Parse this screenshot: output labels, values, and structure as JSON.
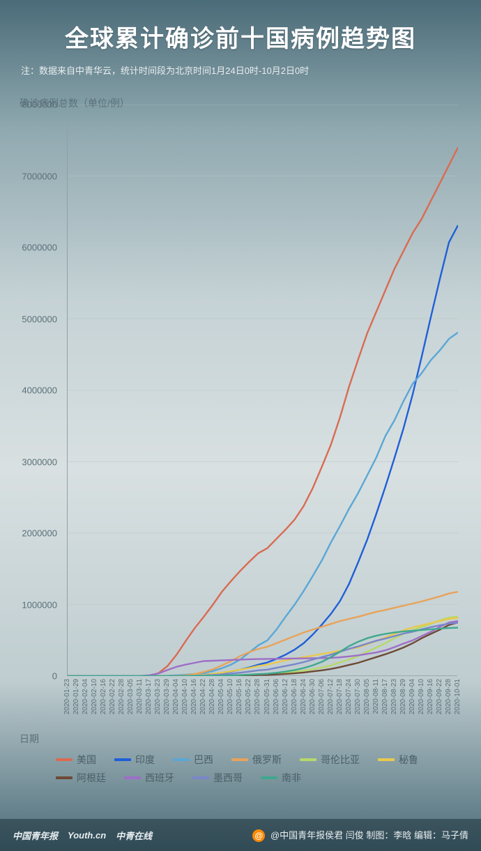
{
  "header": {
    "title": "全球累计确诊前十国病例趋势图",
    "subtitle": "注：数据来自中青华云，统计时间段为北京时间1月24日0时-10月2日0时"
  },
  "chart": {
    "ylabel": "确诊病例总数（单位/例）",
    "xlabel": "日期",
    "ylim": [
      0,
      8000000
    ],
    "ytick_step": 1000000,
    "yticks": [
      "0",
      "1000000",
      "2000000",
      "3000000",
      "4000000",
      "5000000",
      "6000000",
      "7000000",
      "8000000"
    ],
    "x_dates": [
      "2020-01-23",
      "2020-01-29",
      "2020-02-04",
      "2020-02-10",
      "2020-02-16",
      "2020-02-22",
      "2020-02-28",
      "2020-03-05",
      "2020-03-11",
      "2020-03-17",
      "2020-03-23",
      "2020-03-29",
      "2020-04-04",
      "2020-04-10",
      "2020-04-16",
      "2020-04-22",
      "2020-04-28",
      "2020-05-04",
      "2020-05-10",
      "2020-05-16",
      "2020-05-22",
      "2020-05-28",
      "2020-05-31",
      "2020-06-06",
      "2020-06-12",
      "2020-06-18",
      "2020-06-24",
      "2020-06-30",
      "2020-07-06",
      "2020-07-12",
      "2020-07-18",
      "2020-07-24",
      "2020-07-30",
      "2020-08-05",
      "2020-08-11",
      "2020-08-17",
      "2020-08-23",
      "2020-08-29",
      "2020-09-04",
      "2020-09-10",
      "2020-09-16",
      "2020-09-22",
      "2020-09-28",
      "2020-10-01"
    ],
    "background_color": "#c5d2d5",
    "grid_color": "#b8c5c9",
    "axis_color": "#8fa0a6",
    "tick_fontsize": 12,
    "line_width": 2.4,
    "series": [
      {
        "name": "美国",
        "color": "#d96b52",
        "values": [
          0,
          0,
          0,
          0,
          0,
          0,
          0,
          0,
          1000,
          6000,
          40000,
          140000,
          300000,
          490000,
          670000,
          830000,
          1000000,
          1180000,
          1330000,
          1470000,
          1600000,
          1720000,
          1790000,
          1920000,
          2050000,
          2190000,
          2380000,
          2630000,
          2930000,
          3240000,
          3620000,
          4050000,
          4430000,
          4800000,
          5100000,
          5400000,
          5700000,
          5950000,
          6200000,
          6400000,
          6650000,
          6900000,
          7150000,
          7400000
        ]
      },
      {
        "name": "印度",
        "color": "#1f5fd8",
        "values": [
          0,
          0,
          0,
          0,
          0,
          0,
          0,
          0,
          0,
          0,
          0,
          1000,
          3000,
          7000,
          13000,
          21000,
          30000,
          45000,
          65000,
          90000,
          120000,
          160000,
          190000,
          240000,
          300000,
          370000,
          460000,
          580000,
          720000,
          870000,
          1050000,
          1290000,
          1590000,
          1910000,
          2270000,
          2650000,
          3050000,
          3470000,
          3940000,
          4470000,
          5020000,
          5560000,
          6070000,
          6310000
        ]
      },
      {
        "name": "巴西",
        "color": "#5aa7d6",
        "values": [
          0,
          0,
          0,
          0,
          0,
          0,
          0,
          0,
          0,
          0,
          1500,
          4000,
          10000,
          19000,
          30000,
          45000,
          70000,
          110000,
          160000,
          230000,
          330000,
          430000,
          500000,
          650000,
          830000,
          1000000,
          1190000,
          1400000,
          1620000,
          1870000,
          2100000,
          2340000,
          2560000,
          2810000,
          3060000,
          3360000,
          3580000,
          3850000,
          4090000,
          4240000,
          4420000,
          4560000,
          4720000,
          4810000
        ]
      },
      {
        "name": "俄罗斯",
        "color": "#e8a35a",
        "values": [
          0,
          0,
          0,
          0,
          0,
          0,
          0,
          0,
          0,
          0,
          500,
          2000,
          5000,
          12000,
          28000,
          58000,
          95000,
          150000,
          210000,
          280000,
          335000,
          380000,
          410000,
          460000,
          510000,
          560000,
          610000,
          650000,
          690000,
          730000,
          770000,
          800000,
          830000,
          865000,
          900000,
          925000,
          955000,
          985000,
          1015000,
          1045000,
          1080000,
          1115000,
          1155000,
          1180000
        ]
      },
      {
        "name": "哥伦比亚",
        "color": "#b7d86a",
        "values": [
          0,
          0,
          0,
          0,
          0,
          0,
          0,
          0,
          0,
          0,
          0,
          700,
          1400,
          2500,
          3300,
          4300,
          5900,
          7900,
          11000,
          15000,
          19000,
          25000,
          29000,
          38000,
          46000,
          60000,
          75000,
          98000,
          120000,
          150000,
          190000,
          230000,
          280000,
          340000,
          400000,
          460000,
          530000,
          590000,
          640000,
          690000,
          730000,
          780000,
          820000,
          830000
        ]
      },
      {
        "name": "秘鲁",
        "color": "#e8c94e",
        "values": [
          0,
          0,
          0,
          0,
          0,
          0,
          0,
          0,
          0,
          0,
          0,
          900,
          2000,
          6000,
          12000,
          19000,
          30000,
          47000,
          68000,
          90000,
          112000,
          140000,
          160000,
          190000,
          220000,
          245000,
          265000,
          285000,
          310000,
          330000,
          355000,
          380000,
          400000,
          445000,
          490000,
          540000,
          590000,
          640000,
          680000,
          710000,
          740000,
          770000,
          800000,
          815000
        ]
      },
      {
        "name": "阿根廷",
        "color": "#6d4a36",
        "values": [
          0,
          0,
          0,
          0,
          0,
          0,
          0,
          0,
          0,
          0,
          0,
          800,
          1400,
          2000,
          2700,
          3400,
          4100,
          5000,
          6200,
          7800,
          10000,
          14000,
          16000,
          22000,
          30000,
          38000,
          50000,
          65000,
          80000,
          100000,
          125000,
          155000,
          185000,
          225000,
          265000,
          305000,
          350000,
          400000,
          460000,
          530000,
          590000,
          650000,
          715000,
          750000
        ]
      },
      {
        "name": "西班牙",
        "color": "#9d6fc7",
        "values": [
          0,
          0,
          0,
          0,
          0,
          0,
          0,
          0,
          2000,
          12000,
          35000,
          85000,
          130000,
          160000,
          185000,
          210000,
          215000,
          220000,
          225000,
          230000,
          235000,
          238000,
          240000,
          242000,
          244000,
          246000,
          248000,
          250000,
          252000,
          255000,
          262000,
          275000,
          290000,
          310000,
          330000,
          360000,
          405000,
          455000,
          500000,
          560000,
          620000,
          690000,
          750000,
          770000
        ]
      },
      {
        "name": "墨西哥",
        "color": "#7a86c9",
        "values": [
          0,
          0,
          0,
          0,
          0,
          0,
          0,
          0,
          0,
          0,
          300,
          1000,
          2000,
          4000,
          6500,
          10000,
          16000,
          25000,
          35000,
          47000,
          62000,
          80000,
          90000,
          115000,
          140000,
          165000,
          195000,
          230000,
          265000,
          300000,
          340000,
          380000,
          415000,
          455000,
          495000,
          525000,
          560000,
          595000,
          620000,
          655000,
          685000,
          710000,
          735000,
          745000
        ]
      },
      {
        "name": "南非",
        "color": "#3fa88f",
        "values": [
          0,
          0,
          0,
          0,
          0,
          0,
          0,
          0,
          0,
          0,
          400,
          1300,
          1600,
          2000,
          2700,
          3600,
          5000,
          7200,
          10000,
          14000,
          20000,
          27000,
          33000,
          46000,
          62000,
          84000,
          112000,
          150000,
          200000,
          265000,
          340000,
          420000,
          480000,
          530000,
          565000,
          590000,
          610000,
          625000,
          635000,
          645000,
          655000,
          665000,
          672000,
          677000
        ]
      }
    ]
  },
  "footer": {
    "brand1": "中国青年报",
    "brand2": "Youth.cn",
    "brand3": "中青在线",
    "credit": "@中国青年报侯君 闫俊 制图：李晗 编辑：马子倩"
  }
}
